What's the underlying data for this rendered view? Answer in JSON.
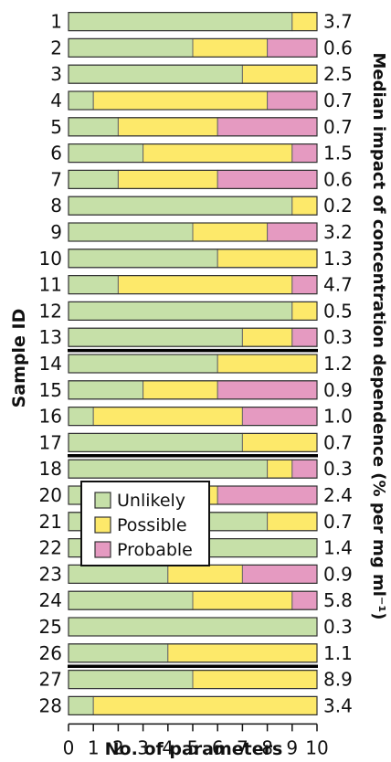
{
  "chart_data": {
    "type": "bar",
    "orientation": "horizontal",
    "stacked": true,
    "xlabel": "No. of parameters",
    "ylabel": "Sample ID",
    "right_label": "Median impact of concentration dependence (% per mg ml⁻¹)",
    "xlim": [
      0,
      10
    ],
    "x_ticks": [
      "0",
      "1",
      "2",
      "3",
      "4",
      "5",
      "6",
      "7",
      "8",
      "9",
      "10"
    ],
    "colors": {
      "Unlikely": "#c6e0a8",
      "Possible": "#fde96a",
      "Probable": "#e59ac1"
    },
    "series": [
      {
        "name": "Unlikely"
      },
      {
        "name": "Possible"
      },
      {
        "name": "Probable"
      }
    ],
    "legend_position": "lower-left",
    "group_separators_after": [
      "13",
      "17",
      "26"
    ],
    "rows": [
      {
        "id": "1",
        "unlikely": 9,
        "possible": 1,
        "probable": 0,
        "median": "3.7"
      },
      {
        "id": "2",
        "unlikely": 5,
        "possible": 3,
        "probable": 2,
        "median": "0.6"
      },
      {
        "id": "3",
        "unlikely": 7,
        "possible": 3,
        "probable": 0,
        "median": "2.5"
      },
      {
        "id": "4",
        "unlikely": 1,
        "possible": 7,
        "probable": 2,
        "median": "0.7"
      },
      {
        "id": "5",
        "unlikely": 2,
        "possible": 4,
        "probable": 4,
        "median": "0.7"
      },
      {
        "id": "6",
        "unlikely": 3,
        "possible": 6,
        "probable": 1,
        "median": "1.5"
      },
      {
        "id": "7",
        "unlikely": 2,
        "possible": 4,
        "probable": 4,
        "median": "0.6"
      },
      {
        "id": "8",
        "unlikely": 9,
        "possible": 1,
        "probable": 0,
        "median": "0.2"
      },
      {
        "id": "9",
        "unlikely": 5,
        "possible": 3,
        "probable": 2,
        "median": "3.2"
      },
      {
        "id": "10",
        "unlikely": 6,
        "possible": 4,
        "probable": 0,
        "median": "1.3"
      },
      {
        "id": "11",
        "unlikely": 2,
        "possible": 7,
        "probable": 1,
        "median": "4.7"
      },
      {
        "id": "12",
        "unlikely": 9,
        "possible": 1,
        "probable": 0,
        "median": "0.5"
      },
      {
        "id": "13",
        "unlikely": 7,
        "possible": 2,
        "probable": 1,
        "median": "0.3"
      },
      {
        "id": "14",
        "unlikely": 6,
        "possible": 4,
        "probable": 0,
        "median": "1.2"
      },
      {
        "id": "15",
        "unlikely": 3,
        "possible": 3,
        "probable": 4,
        "median": "0.9"
      },
      {
        "id": "16",
        "unlikely": 1,
        "possible": 6,
        "probable": 3,
        "median": "1.0"
      },
      {
        "id": "17",
        "unlikely": 7,
        "possible": 3,
        "probable": 0,
        "median": "0.7"
      },
      {
        "id": "18",
        "unlikely": 8,
        "possible": 1,
        "probable": 1,
        "median": "0.3"
      },
      {
        "id": "20",
        "unlikely": 3,
        "possible": 3,
        "probable": 4,
        "median": "2.4"
      },
      {
        "id": "21",
        "unlikely": 8,
        "possible": 2,
        "probable": 0,
        "median": "0.7"
      },
      {
        "id": "22",
        "unlikely": 10,
        "possible": 0,
        "probable": 0,
        "median": "1.4"
      },
      {
        "id": "23",
        "unlikely": 4,
        "possible": 3,
        "probable": 3,
        "median": "0.9"
      },
      {
        "id": "24",
        "unlikely": 5,
        "possible": 4,
        "probable": 1,
        "median": "5.8"
      },
      {
        "id": "25",
        "unlikely": 10,
        "possible": 0,
        "probable": 0,
        "median": "0.3"
      },
      {
        "id": "26",
        "unlikely": 4,
        "possible": 6,
        "probable": 0,
        "median": "1.1"
      },
      {
        "id": "27",
        "unlikely": 5,
        "possible": 5,
        "probable": 0,
        "median": "8.9"
      },
      {
        "id": "28",
        "unlikely": 1,
        "possible": 9,
        "probable": 0,
        "median": "3.4"
      }
    ]
  }
}
